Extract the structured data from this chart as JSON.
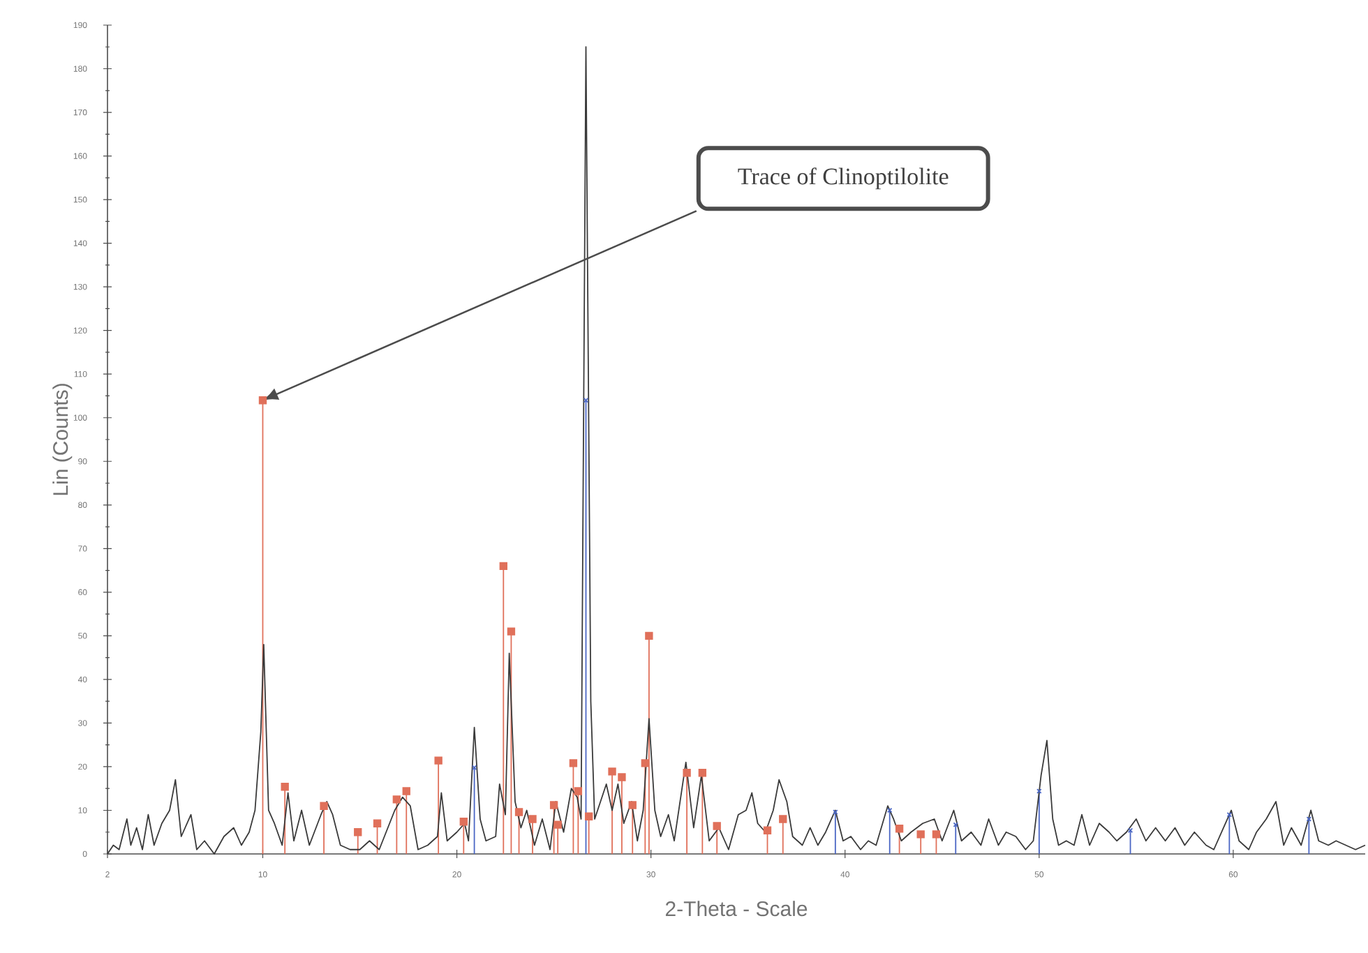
{
  "chart_data": {
    "type": "line",
    "xlabel": "2-Theta - Scale",
    "ylabel": "Lin (Counts)",
    "xlim": [
      2,
      66.8
    ],
    "ylim": [
      0,
      190
    ],
    "xticks": [
      2,
      10,
      20,
      30,
      40,
      50,
      60
    ],
    "yticks": [
      0,
      10,
      20,
      30,
      40,
      50,
      60,
      70,
      80,
      90,
      100,
      110,
      120,
      130,
      140,
      150,
      160,
      170,
      180,
      190
    ],
    "grid": false,
    "annotations": [
      "Trace of Clinoptilolite"
    ],
    "series": [
      {
        "color": "#3a3a3a",
        "marker": "none",
        "line_style": "solid",
        "x": [
          2.0,
          2.3,
          2.6,
          3.0,
          3.2,
          3.5,
          3.8,
          4.1,
          4.4,
          4.8,
          5.2,
          5.5,
          5.8,
          6.3,
          6.6,
          7.0,
          7.5,
          8.0,
          8.5,
          8.9,
          9.3,
          9.6,
          9.9,
          10.05,
          10.3,
          10.6,
          11.0,
          11.3,
          11.6,
          12.0,
          12.4,
          13.0,
          13.3,
          13.6,
          14.0,
          14.5,
          15.0,
          15.5,
          16.0,
          16.8,
          17.2,
          17.6,
          18.0,
          18.5,
          19.0,
          19.2,
          19.5,
          20.0,
          20.4,
          20.6,
          20.9,
          21.2,
          21.5,
          22.0,
          22.2,
          22.5,
          22.7,
          23.0,
          23.3,
          23.6,
          24.0,
          24.4,
          24.8,
          25.1,
          25.5,
          25.9,
          26.2,
          26.4,
          26.65,
          26.9,
          27.1,
          27.4,
          27.7,
          28.0,
          28.3,
          28.6,
          29.0,
          29.3,
          29.6,
          29.9,
          30.2,
          30.5,
          30.9,
          31.2,
          31.8,
          32.2,
          32.6,
          33.0,
          33.5,
          34.0,
          34.5,
          34.9,
          35.2,
          35.5,
          35.9,
          36.3,
          36.6,
          37.0,
          37.3,
          37.8,
          38.2,
          38.6,
          39.0,
          39.5,
          39.9,
          40.3,
          40.8,
          41.2,
          41.6,
          42.2,
          42.5,
          42.9,
          43.4,
          44.0,
          44.6,
          45.0,
          45.6,
          46.0,
          46.5,
          47.0,
          47.4,
          47.9,
          48.3,
          48.8,
          49.3,
          49.7,
          50.1,
          50.4,
          50.7,
          51.0,
          51.4,
          51.8,
          52.2,
          52.6,
          53.1,
          53.6,
          54.0,
          54.5,
          55.0,
          55.5,
          56.0,
          56.5,
          57.0,
          57.5,
          58.0,
          58.6,
          59.0,
          59.5,
          59.9,
          60.3,
          60.8,
          61.2,
          61.7,
          62.2,
          62.6,
          63.0,
          63.5,
          64.0,
          64.4,
          64.9,
          65.3,
          65.8,
          66.3,
          66.8
        ],
        "values": [
          0,
          2,
          1,
          8,
          2,
          6,
          1,
          9,
          2,
          7,
          10,
          17,
          4,
          9,
          1,
          3,
          0,
          4,
          6,
          2,
          5,
          10,
          28,
          48,
          10,
          7,
          2,
          14,
          3,
          10,
          2,
          9,
          12,
          9,
          2,
          1,
          1,
          3,
          1,
          10,
          13,
          11,
          1,
          2,
          4,
          14,
          3,
          5,
          7,
          3,
          29,
          8,
          3,
          4,
          16,
          9,
          46,
          12,
          6,
          10,
          2,
          8,
          1,
          12,
          5,
          15,
          13,
          8,
          185,
          35,
          8,
          12,
          16,
          10,
          16,
          7,
          12,
          3,
          10,
          31,
          10,
          4,
          9,
          3,
          21,
          6,
          18,
          3,
          6,
          1,
          9,
          10,
          14,
          7,
          5,
          10,
          17,
          12,
          4,
          2,
          6,
          2,
          5,
          10,
          3,
          4,
          1,
          3,
          2,
          11,
          8,
          3,
          5,
          7,
          8,
          3,
          10,
          3,
          5,
          2,
          8,
          2,
          5,
          4,
          1,
          3,
          18,
          26,
          8,
          2,
          3,
          2,
          9,
          2,
          7,
          5,
          3,
          5,
          8,
          3,
          6,
          3,
          6,
          2,
          5,
          2,
          1,
          6,
          10,
          3,
          1,
          5,
          8,
          12,
          2,
          6,
          2,
          10,
          3,
          2,
          3,
          2,
          1,
          2
        ]
      },
      {
        "type": "lollipop",
        "color": "#e0705a",
        "marker": "square",
        "x": [
          10.0,
          11.14,
          13.15,
          14.9,
          15.9,
          16.9,
          17.4,
          19.05,
          20.35,
          22.4,
          22.8,
          23.2,
          23.9,
          25.0,
          25.2,
          26.0,
          26.25,
          26.8,
          28.0,
          28.5,
          29.05,
          29.7,
          29.9,
          31.85,
          32.65,
          33.4,
          36.0,
          36.8,
          42.8,
          43.9,
          44.7
        ],
        "values": [
          104,
          15.4,
          11,
          5,
          7,
          12.5,
          14.4,
          21.4,
          7.4,
          66,
          51,
          9.6,
          8,
          11.2,
          6.7,
          20.8,
          14.4,
          8.6,
          18.9,
          17.6,
          11.2,
          20.8,
          50,
          18.6,
          18.6,
          6.4,
          5.4,
          8,
          5.8,
          4.5,
          4.5
        ]
      },
      {
        "type": "lollipop",
        "color": "#4a66c4",
        "marker": "cross",
        "x": [
          20.9,
          26.65,
          39.5,
          42.3,
          45.7,
          50.0,
          54.7,
          59.8,
          63.9
        ],
        "values": [
          19.8,
          104,
          9.6,
          10,
          6.7,
          14.4,
          5.4,
          9,
          8
        ]
      }
    ]
  }
}
